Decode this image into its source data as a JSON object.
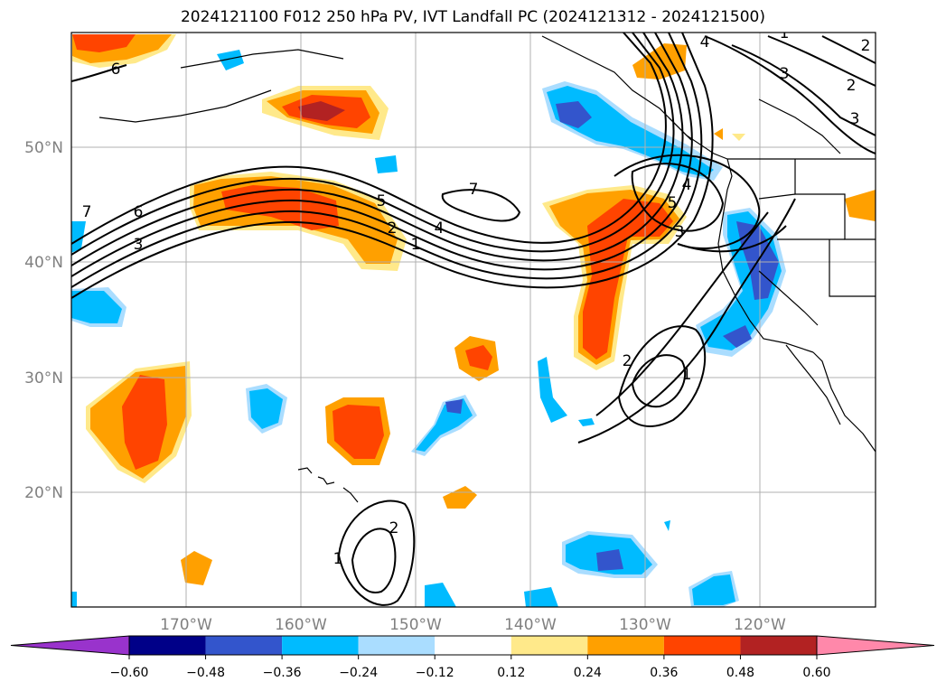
{
  "title": "2024121100 F012 250 hPa PV, IVT Landfall PC (2024121312 - 2024121500)",
  "map": {
    "lon_range": [
      -180,
      -110
    ],
    "lat_range": [
      10,
      60
    ],
    "lat_labels": [
      "20°N",
      "30°N",
      "40°N",
      "50°N"
    ],
    "lon_labels": [
      "170°W",
      "160°W",
      "150°W",
      "140°W",
      "130°W",
      "120°W"
    ],
    "grid": true,
    "contour_labels": [
      "6",
      "7",
      "6",
      "5",
      "4",
      "3",
      "2",
      "1",
      "7",
      "5",
      "4",
      "3",
      "2",
      "1",
      "1",
      "2",
      "4",
      "3",
      "2",
      "3",
      "1",
      "2"
    ]
  },
  "colorbar": {
    "ticks": [
      "−0.60",
      "−0.48",
      "−0.36",
      "−0.24",
      "−0.12",
      "0.12",
      "0.24",
      "0.36",
      "0.48",
      "0.60"
    ],
    "colors": [
      "#9933cc",
      "#000088",
      "#3355cc",
      "#00bbff",
      "#aaddff",
      "#ffffff",
      "#ffe98a",
      "#ffa000",
      "#ff4400",
      "#b22222",
      "#ff88aa"
    ],
    "extend": "both"
  }
}
